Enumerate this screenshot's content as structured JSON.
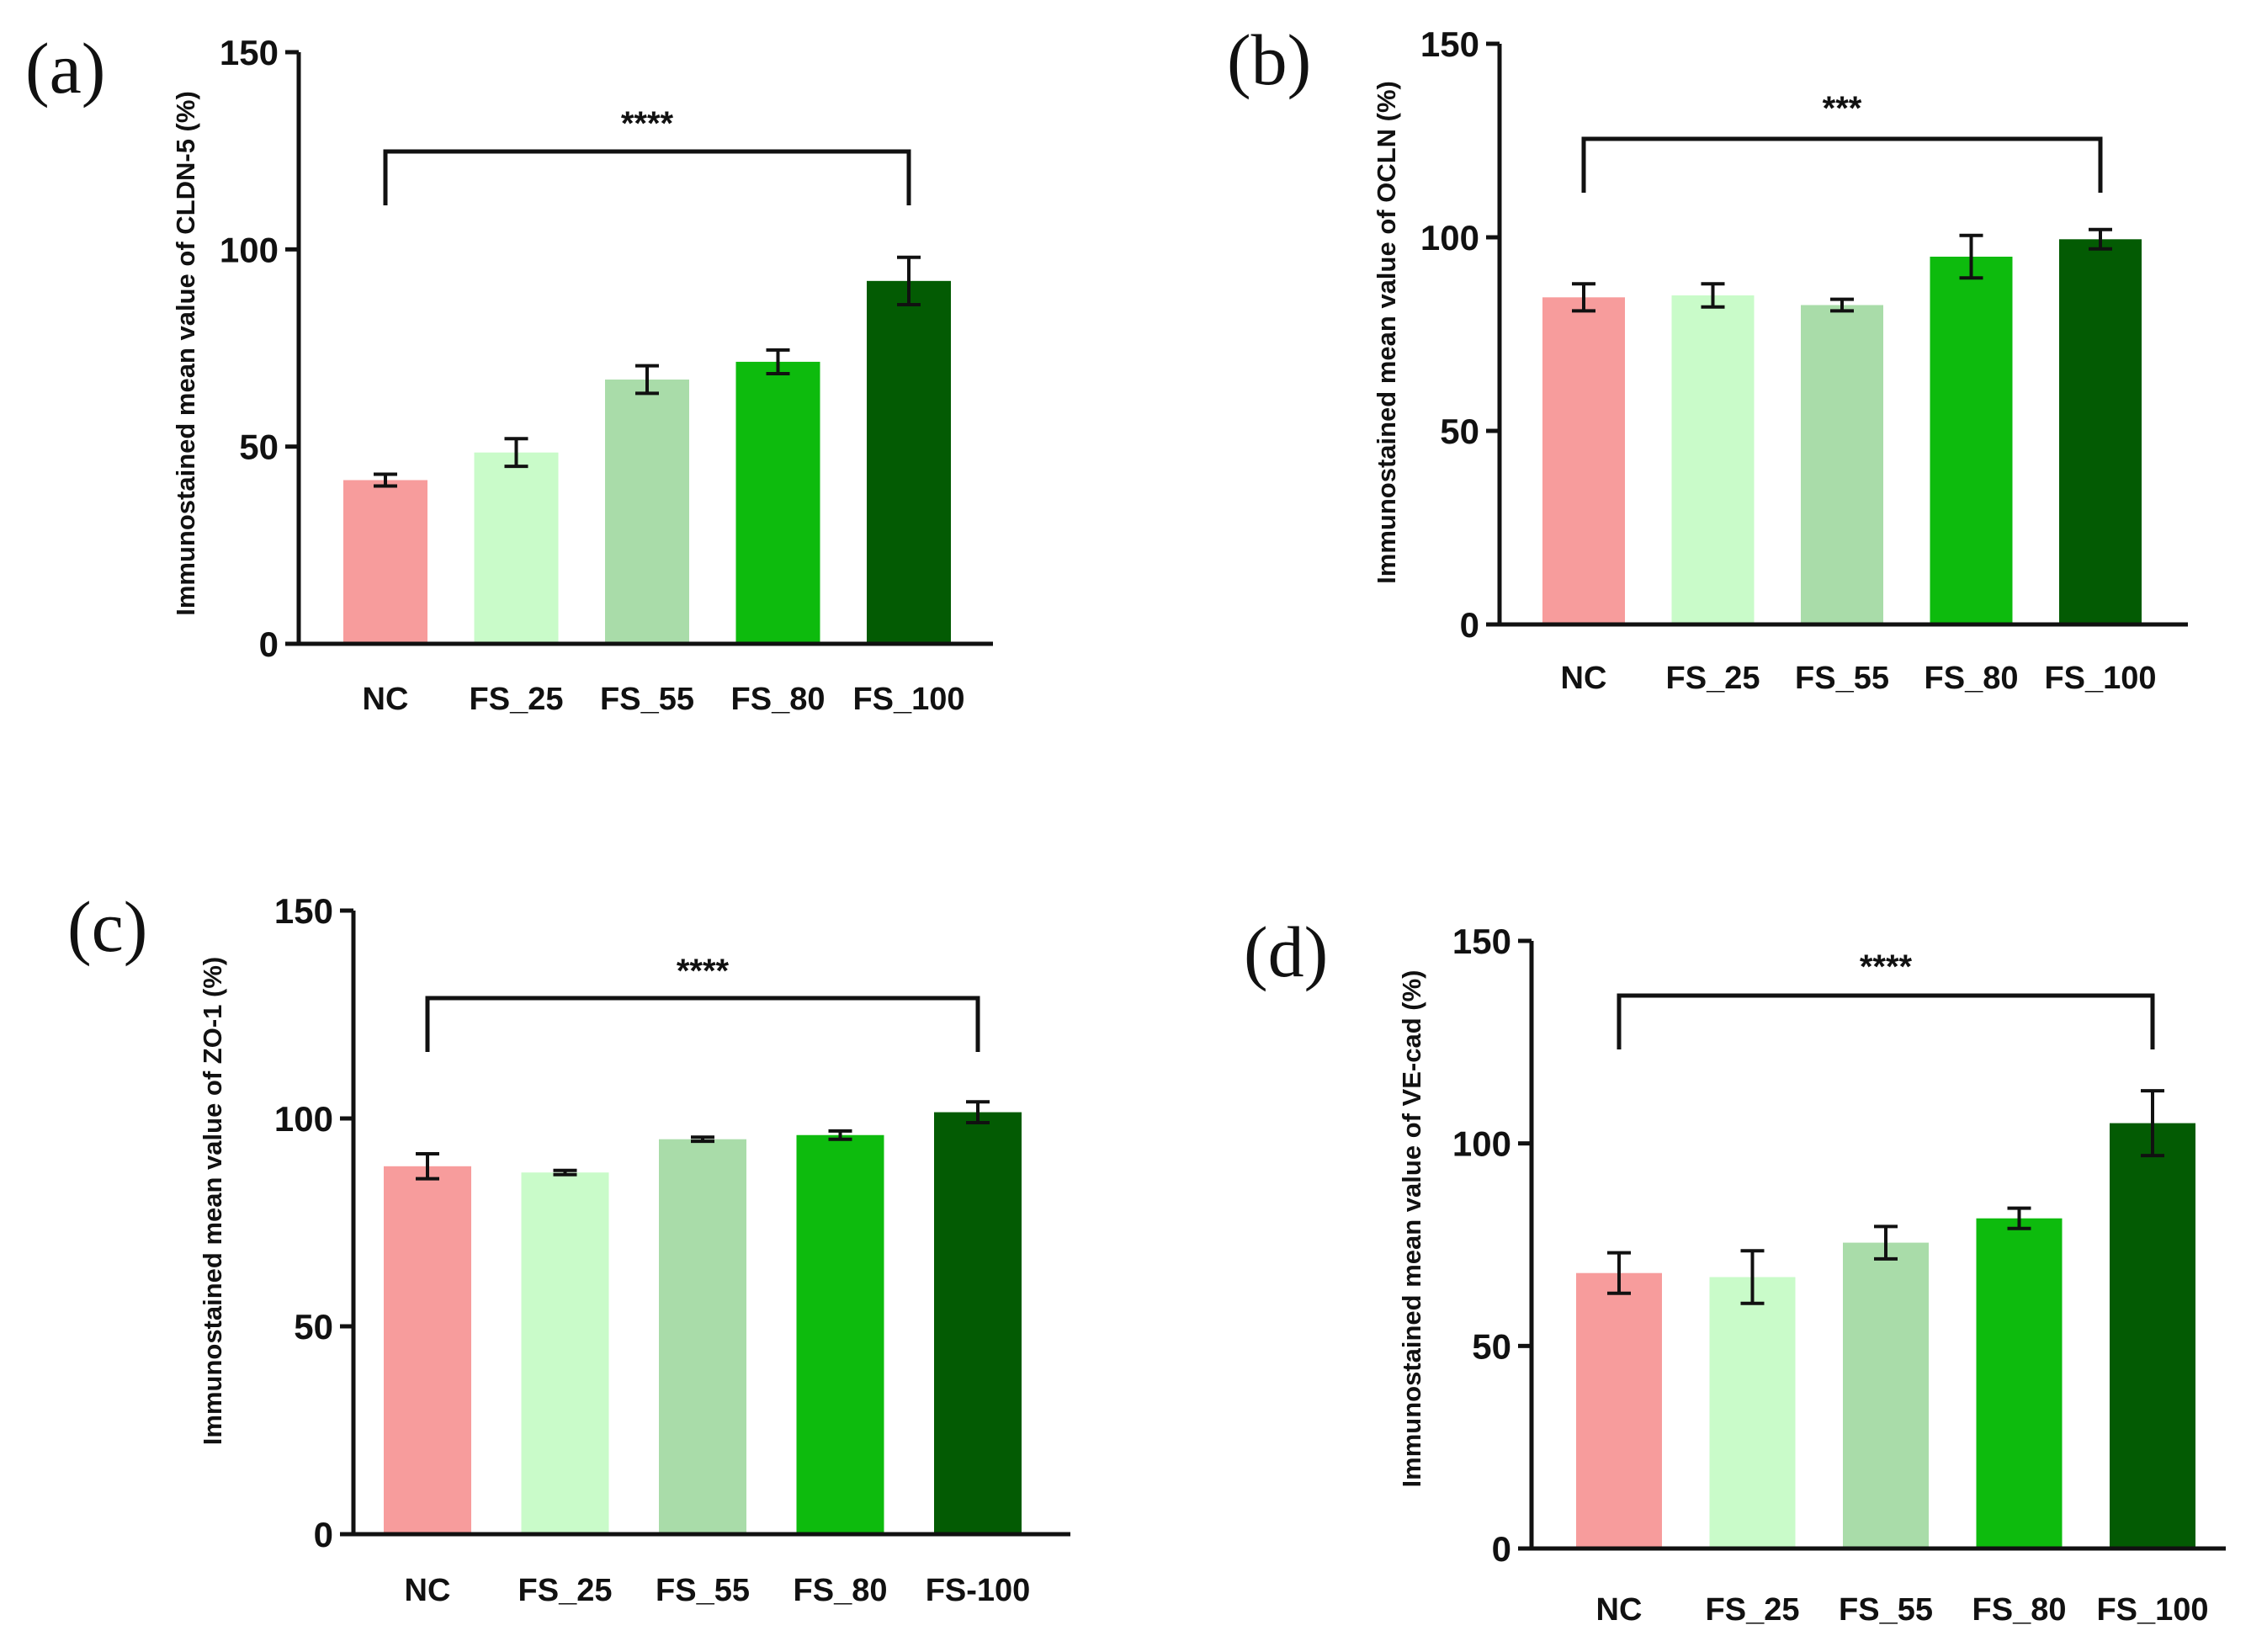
{
  "chart_data": [
    {
      "panel": "(a)",
      "type": "bar",
      "ylabel": "Immunostained mean value of CLDN-5 (%)",
      "ylim": [
        0,
        150
      ],
      "yticks": [
        0,
        50,
        100,
        150
      ],
      "categories": [
        "NC",
        "FS_25",
        "FS_55",
        "FS_80",
        "FS_100"
      ],
      "values": [
        41.5,
        48.5,
        67,
        71.5,
        92
      ],
      "errors": [
        1.5,
        3.5,
        3.5,
        3,
        6
      ],
      "colors": [
        "#f79c9c",
        "#c9fbc9",
        "#a9dca9",
        "#0dbb0d",
        "#035b03"
      ],
      "significance": {
        "label": "****",
        "from": "NC",
        "to": "FS_100"
      }
    },
    {
      "panel": "(b)",
      "type": "bar",
      "ylabel": "Immunostained mean value of OCLN (%)",
      "ylim": [
        0,
        150
      ],
      "yticks": [
        0,
        50,
        100,
        150
      ],
      "categories": [
        "NC",
        "FS_25",
        "FS_55",
        "FS_80",
        "FS_100"
      ],
      "values": [
        84.5,
        85,
        82.5,
        95,
        99.5
      ],
      "errors": [
        3.5,
        3,
        1.5,
        5.5,
        2.5
      ],
      "colors": [
        "#f79c9c",
        "#c9fbc9",
        "#a9dca9",
        "#0dbb0d",
        "#035b03"
      ],
      "significance": {
        "label": "***",
        "from": "NC",
        "to": "FS_100"
      }
    },
    {
      "panel": "(c)",
      "type": "bar",
      "ylabel": "Immunostained mean value of ZO-1 (%)",
      "ylim": [
        0,
        150
      ],
      "yticks": [
        0,
        50,
        100,
        150
      ],
      "categories": [
        "NC",
        "FS_25",
        "FS_55",
        "FS_80",
        "FS-100"
      ],
      "values": [
        88.5,
        87,
        95,
        96,
        101.5
      ],
      "errors": [
        3,
        0.5,
        0.5,
        1,
        2.5
      ],
      "colors": [
        "#f79c9c",
        "#c9fbc9",
        "#a9dca9",
        "#0dbb0d",
        "#035b03"
      ],
      "significance": {
        "label": "****",
        "from": "NC",
        "to": "FS-100"
      }
    },
    {
      "panel": "(d)",
      "type": "bar",
      "ylabel": "Immunostained mean value of VE-cad (%)",
      "ylim": [
        0,
        150
      ],
      "yticks": [
        0,
        50,
        100,
        150
      ],
      "categories": [
        "NC",
        "FS_25",
        "FS_55",
        "FS_80",
        "FS_100"
      ],
      "values": [
        68,
        67,
        75.5,
        81.5,
        105
      ],
      "errors": [
        5,
        6.5,
        4,
        2.5,
        8
      ],
      "colors": [
        "#f79c9c",
        "#c9fbc9",
        "#a9dca9",
        "#0dbb0d",
        "#035b03"
      ],
      "significance": {
        "label": "****",
        "from": "NC",
        "to": "FS_100"
      }
    }
  ]
}
